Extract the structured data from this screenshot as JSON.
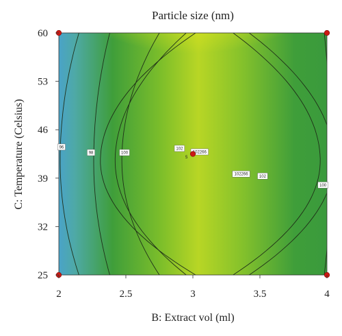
{
  "chart_data": {
    "type": "contour",
    "title": "Particle size (nm)",
    "xlabel": "B: Extract vol (ml)",
    "ylabel": "C: Temperature (Celsius)",
    "xlim": [
      2,
      4
    ],
    "ylim": [
      25,
      60
    ],
    "xticks": [
      "2",
      "2.5",
      "3",
      "3.5",
      "4"
    ],
    "yticks": [
      "25",
      "32",
      "39",
      "46",
      "53",
      "60"
    ],
    "colors": {
      "low": "#4aa3c8",
      "mid": "#3f9e3a",
      "high_yellow": "#f6ee1a",
      "peak": "#d63a12",
      "contour_line": "#1f2f18",
      "design_point": "#cc1a14"
    },
    "contour_labels": [
      {
        "text": "96",
        "x": 2.02,
        "y": 43.5
      },
      {
        "text": "98",
        "x": 2.24,
        "y": 42.7
      },
      {
        "text": "100",
        "x": 2.49,
        "y": 42.7
      },
      {
        "text": "102",
        "x": 2.9,
        "y": 43.3
      },
      {
        "text": "102266",
        "x": 3.05,
        "y": 42.8
      },
      {
        "text": "102266",
        "x": 3.36,
        "y": 39.6
      },
      {
        "text": "102",
        "x": 3.52,
        "y": 39.3
      },
      {
        "text": "100",
        "x": 3.97,
        "y": 38.0
      }
    ],
    "design_points": [
      {
        "x": 2,
        "y": 25
      },
      {
        "x": 2,
        "y": 60
      },
      {
        "x": 4,
        "y": 25
      },
      {
        "x": 4,
        "y": 60
      },
      {
        "x": 3,
        "y": 42.5
      }
    ],
    "center_point_count": "5"
  }
}
